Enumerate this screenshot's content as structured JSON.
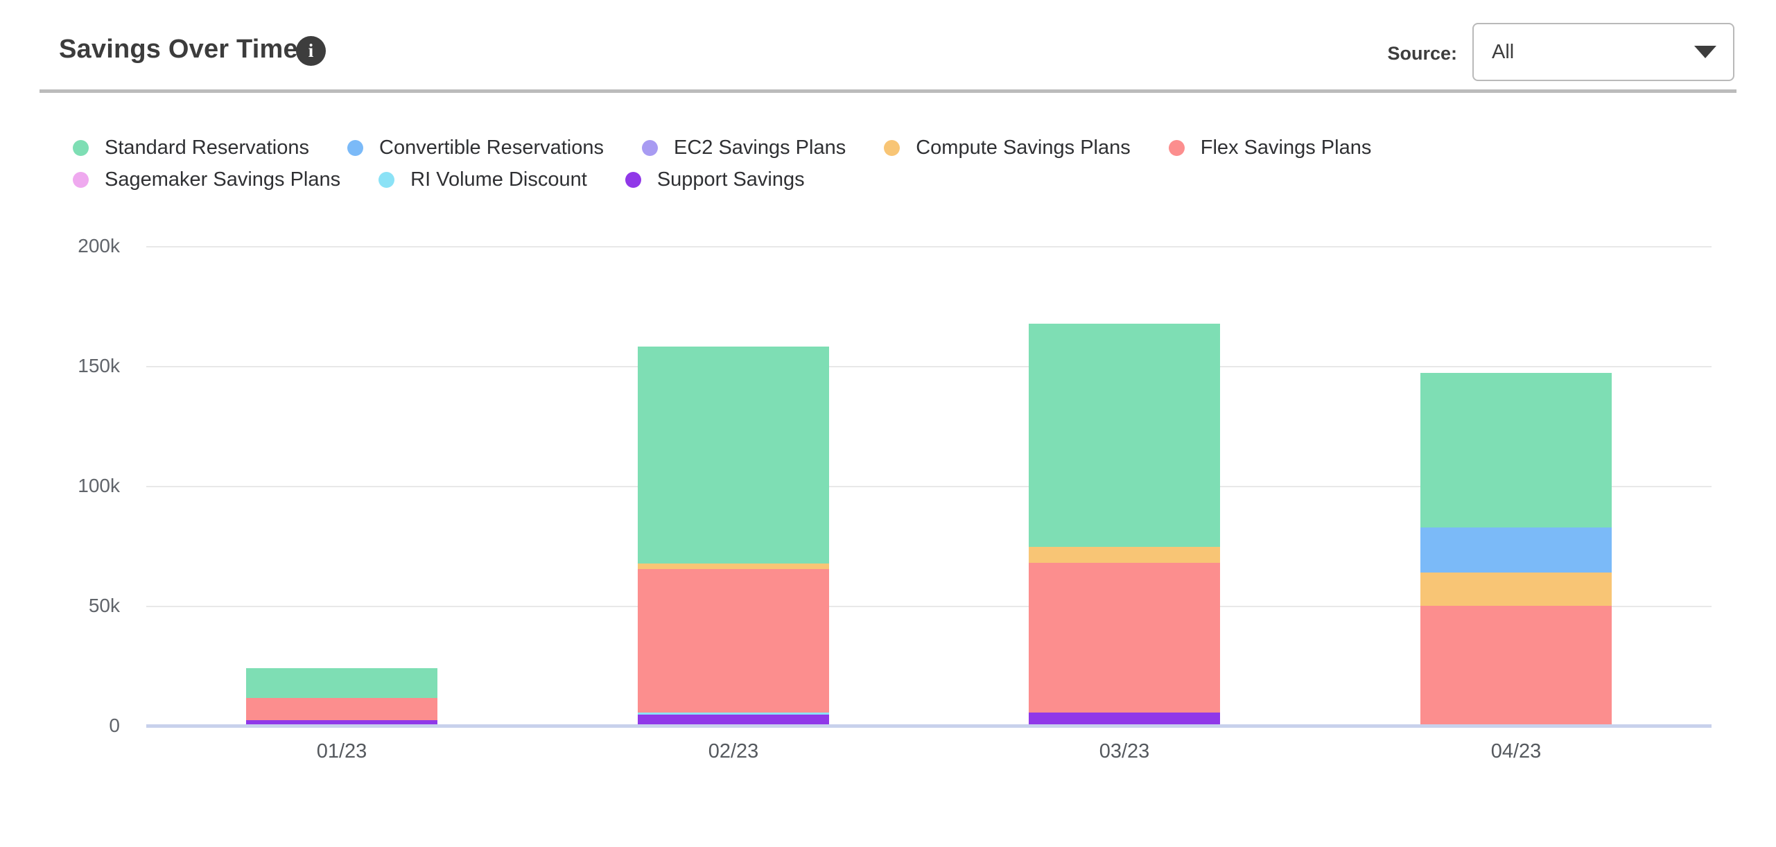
{
  "header": {
    "title": "Savings Over Time",
    "info_icon": "info-icon",
    "source_label": "Source:",
    "source_value": "All",
    "dropdown_caret": "chevron-down-icon"
  },
  "style_colors": {
    "title_text": "#3c3c3c",
    "divider": "#bbbbbb",
    "gridline": "#e8e8e8",
    "axis_line": "#c8d1ec",
    "axis_label_text": "#60646a"
  },
  "chart_data": {
    "type": "bar",
    "stacked": true,
    "title": "Savings Over Time",
    "xlabel": "",
    "ylabel": "",
    "unit": "USD",
    "categories": [
      "01/23",
      "02/23",
      "03/23",
      "04/23"
    ],
    "y_tick_labels": [
      "0",
      "50k",
      "100k",
      "150k",
      "200k"
    ],
    "y_tick_values": [
      0,
      50000,
      100000,
      150000,
      200000
    ],
    "ylim": [
      0,
      200000
    ],
    "grid": "horizontal gridlines on",
    "legend_position": "top-left, two rows",
    "stack_order": "reverse of legend order (Support Savings at bottom, Standard Reservations on top)",
    "series": [
      {
        "name": "Standard Reservations",
        "color": "#7EDEB4",
        "values": [
          12400,
          90500,
          93100,
          64500
        ]
      },
      {
        "name": "Convertible Reservations",
        "color": "#7BBAF8",
        "values": [
          0,
          0,
          0,
          18800
        ]
      },
      {
        "name": "EC2 Savings Plans",
        "color": "#A89BF2",
        "values": [
          0,
          0,
          0,
          0
        ]
      },
      {
        "name": "Compute Savings Plans",
        "color": "#F8C575",
        "values": [
          0,
          2300,
          6600,
          13900
        ]
      },
      {
        "name": "Flex Savings Plans",
        "color": "#FC8E8E",
        "values": [
          9300,
          59800,
          62400,
          50300
        ]
      },
      {
        "name": "Sagemaker Savings Plans",
        "color": "#EFA9EF",
        "values": [
          0,
          0,
          0,
          0
        ]
      },
      {
        "name": "RI Volume Discount",
        "color": "#8BE2F6",
        "values": [
          0,
          900,
          0,
          0
        ]
      },
      {
        "name": "Support Savings",
        "color": "#9038E8",
        "values": [
          2500,
          4900,
          5800,
          0
        ]
      }
    ],
    "legend_rows": [
      [
        0,
        1,
        2,
        3,
        4
      ],
      [
        5,
        6,
        7
      ]
    ],
    "totals": [
      24200,
      158400,
      167900,
      147500
    ]
  }
}
